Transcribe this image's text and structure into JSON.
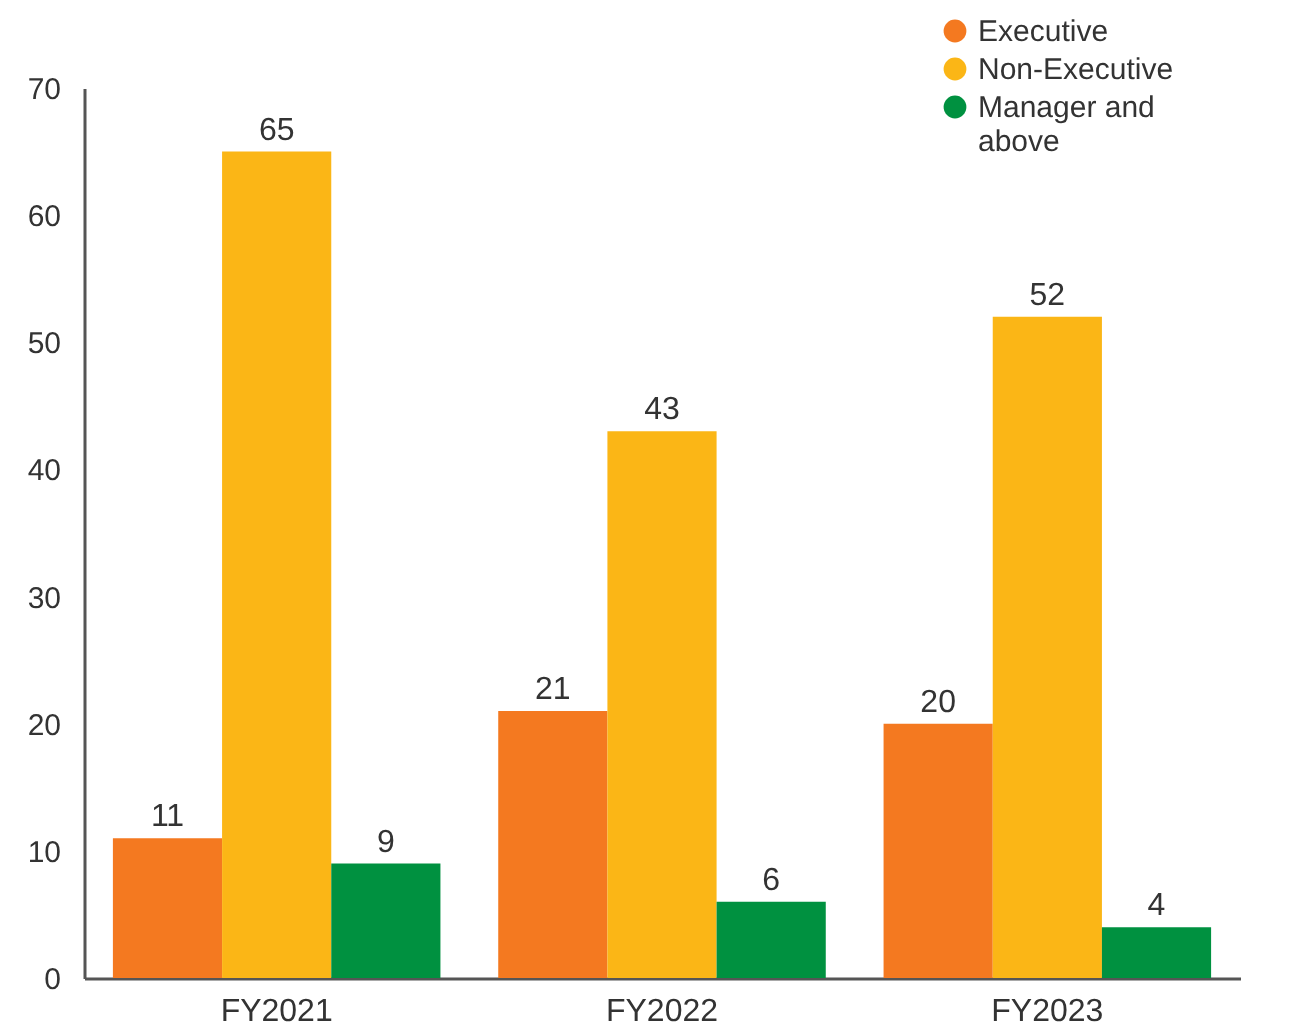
{
  "chart_data": {
    "type": "bar",
    "categories": [
      "FY2021",
      "FY2022",
      "FY2023"
    ],
    "series": [
      {
        "name": "Executive",
        "color": "#f47920",
        "values": [
          11,
          21,
          20
        ]
      },
      {
        "name": "Non-Executive",
        "color": "#fbb616",
        "values": [
          65,
          43,
          52
        ]
      },
      {
        "name": "Manager and above",
        "color": "#009140",
        "values": [
          9,
          6,
          4
        ]
      }
    ],
    "ylim": [
      0,
      70
    ],
    "yticks": [
      0,
      10,
      20,
      30,
      40,
      50,
      60,
      70
    ],
    "data_labels": true,
    "legend": "top right",
    "grid": false
  }
}
